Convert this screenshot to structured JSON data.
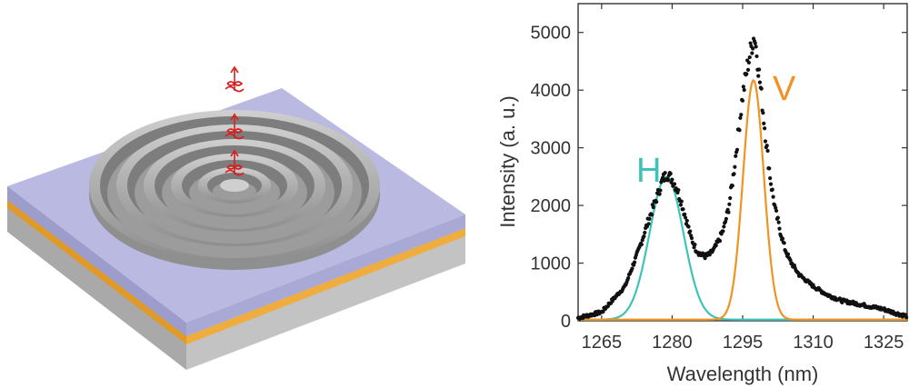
{
  "colors": {
    "substrate_top": "#b9b9e1",
    "gold_layer": "#f0ad3f",
    "grey_base": "#b9b9b9",
    "grating": "#a8a8a8",
    "photon": "#d62020",
    "fit_H": "#3ec3b8",
    "fit_V": "#f29221",
    "data_points": "#111111"
  },
  "device": {
    "description_icons": [
      "circular-bullseye-grating",
      "photon-wave-packet-icon"
    ],
    "ring_count": 5,
    "photon_count": 3
  },
  "chart_data": {
    "type": "scatter",
    "xlabel": "Wavelength (nm)",
    "ylabel": "Intensity (a. u.)",
    "xlim": [
      1260,
      1330
    ],
    "ylim": [
      0,
      5500
    ],
    "xticks": [
      1265,
      1280,
      1295,
      1310,
      1325
    ],
    "yticks": [
      0,
      1000,
      2000,
      3000,
      4000,
      5000
    ],
    "grid": false,
    "annotations": [
      {
        "text": "H",
        "color": "#3ec3b8"
      },
      {
        "text": "V",
        "color": "#f29221"
      }
    ],
    "series": [
      {
        "kind": "points",
        "color": "#111111",
        "x": [
          1260,
          1265,
          1270,
          1273,
          1275,
          1277,
          1278,
          1279,
          1280,
          1281,
          1282,
          1283,
          1284,
          1285,
          1286,
          1287,
          1288,
          1289,
          1290,
          1291,
          1292,
          1293,
          1294,
          1295,
          1296,
          1297,
          1297.5,
          1298,
          1299,
          1300,
          1301,
          1302,
          1303,
          1304,
          1305,
          1307,
          1310,
          1313,
          1316,
          1319,
          1322,
          1325,
          1328,
          1330
        ],
        "y": [
          50,
          150,
          600,
          1250,
          1750,
          2200,
          2450,
          2550,
          2450,
          2300,
          2050,
          1750,
          1450,
          1250,
          1150,
          1120,
          1150,
          1250,
          1400,
          1600,
          1950,
          2500,
          3200,
          3900,
          4400,
          4800,
          4950,
          4650,
          3900,
          3100,
          2400,
          1900,
          1550,
          1250,
          1050,
          800,
          600,
          450,
          350,
          300,
          250,
          200,
          120,
          80
        ]
      },
      {
        "kind": "gaussian-fit",
        "name": "",
        "color": "#3ec3b8",
        "center": 1278.8,
        "amplitude": 2480,
        "sigma": 3.6
      },
      {
        "kind": "gaussian-fit",
        "name": "",
        "color": "#f29221",
        "center": 1297.3,
        "amplitude": 4150,
        "sigma": 2.2
      }
    ]
  }
}
